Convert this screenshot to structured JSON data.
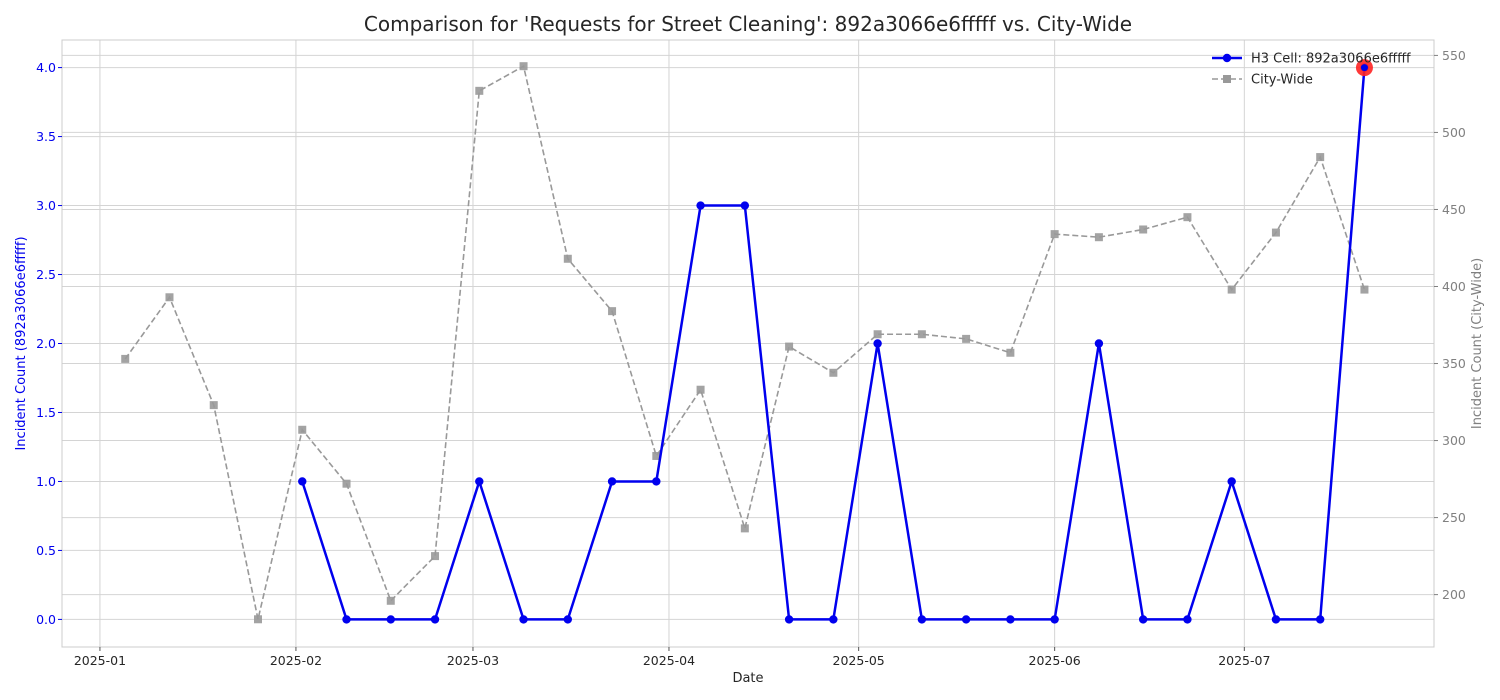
{
  "chart_data": {
    "type": "line",
    "title": "Comparison for 'Requests for Street Cleaning': 892a3066e6fffff vs. City-Wide",
    "xlabel": "Date",
    "ylabel_left": "Incident Count (892a3066e6fffff)",
    "ylabel_right": "Incident Count (City-Wide)",
    "x_ticks": [
      "2025-01",
      "2025-02",
      "2025-03",
      "2025-04",
      "2025-05",
      "2025-06",
      "2025-07"
    ],
    "y_left_ticks": [
      "0.0",
      "0.5",
      "1.0",
      "1.5",
      "2.0",
      "2.5",
      "3.0",
      "3.5",
      "4.0"
    ],
    "y_right_ticks": [
      "200",
      "250",
      "300",
      "350",
      "400",
      "450",
      "500",
      "550"
    ],
    "ylim_left": [
      -0.2,
      4.2
    ],
    "ylim_right": [
      166,
      560
    ],
    "xlim": [
      "2024-12-26",
      "2025-07-31"
    ],
    "grid": true,
    "legend_position": "top-right",
    "series": [
      {
        "name": "H3 Cell: 892a3066e6fffff",
        "axis": "left",
        "color": "#0000ee",
        "style": "solid",
        "marker": "circle",
        "x": [
          "2025-02-02",
          "2025-02-09",
          "2025-02-16",
          "2025-02-23",
          "2025-03-02",
          "2025-03-09",
          "2025-03-16",
          "2025-03-23",
          "2025-03-30",
          "2025-04-06",
          "2025-04-13",
          "2025-04-20",
          "2025-04-27",
          "2025-05-04",
          "2025-05-11",
          "2025-05-18",
          "2025-05-25",
          "2025-06-01",
          "2025-06-08",
          "2025-06-15",
          "2025-06-22",
          "2025-06-29",
          "2025-07-06",
          "2025-07-13",
          "2025-07-20"
        ],
        "values": [
          1,
          0,
          0,
          0,
          1,
          0,
          0,
          1,
          1,
          3,
          3,
          0,
          0,
          2,
          0,
          0,
          0,
          0,
          2,
          0,
          0,
          1,
          0,
          0,
          4
        ]
      },
      {
        "name": "City-Wide",
        "axis": "right",
        "color": "#999999",
        "style": "dashed",
        "marker": "square",
        "x": [
          "2025-01-05",
          "2025-01-12",
          "2025-01-19",
          "2025-01-26",
          "2025-02-02",
          "2025-02-09",
          "2025-02-16",
          "2025-02-23",
          "2025-03-02",
          "2025-03-09",
          "2025-03-16",
          "2025-03-23",
          "2025-03-30",
          "2025-04-06",
          "2025-04-13",
          "2025-04-20",
          "2025-04-27",
          "2025-05-04",
          "2025-05-11",
          "2025-05-18",
          "2025-05-25",
          "2025-06-01",
          "2025-06-08",
          "2025-06-15",
          "2025-06-22",
          "2025-06-29",
          "2025-07-06",
          "2025-07-13",
          "2025-07-20"
        ],
        "values": [
          353,
          393,
          323,
          184,
          307,
          272,
          196,
          225,
          527,
          543,
          418,
          384,
          290,
          333,
          243,
          361,
          344,
          369,
          369,
          366,
          357,
          434,
          432,
          437,
          445,
          398,
          435,
          484,
          398
        ]
      }
    ],
    "highlight": {
      "x": "2025-07-20",
      "value": 4,
      "color": "#ff2222"
    }
  }
}
